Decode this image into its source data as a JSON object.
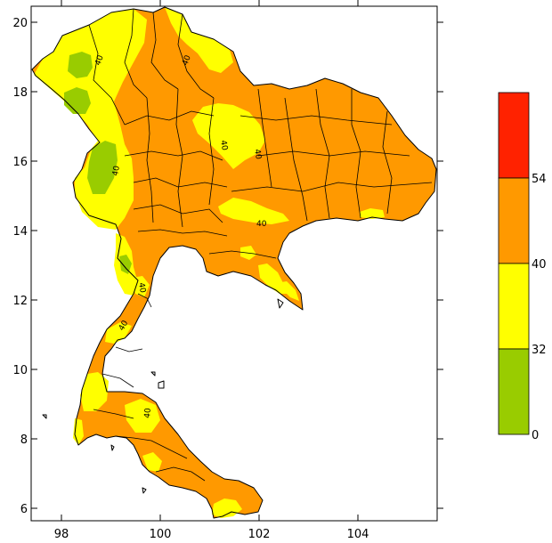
{
  "map": {
    "x_ticks": [
      "98",
      "100",
      "102",
      "104"
    ],
    "y_ticks": [
      "20",
      "18",
      "16",
      "14",
      "12",
      "10",
      "8",
      "6"
    ],
    "contour_labels": [
      "40",
      "40",
      "40",
      "40",
      "40",
      "40",
      "40",
      "40",
      "40"
    ]
  },
  "legend": {
    "bins": [
      {
        "color": "#99cc00",
        "from": 0,
        "to": 32
      },
      {
        "color": "#ffff00",
        "from": 32,
        "to": 40
      },
      {
        "color": "#ff9900",
        "from": 40,
        "to": 54
      },
      {
        "color": "#ff2200",
        "from": 54,
        "to": null
      }
    ],
    "labels": [
      "54",
      "40",
      "32",
      "0"
    ]
  },
  "colors": {
    "green": "#99cc00",
    "yellow": "#ffff00",
    "orange": "#ff9900",
    "red": "#ff2200"
  }
}
